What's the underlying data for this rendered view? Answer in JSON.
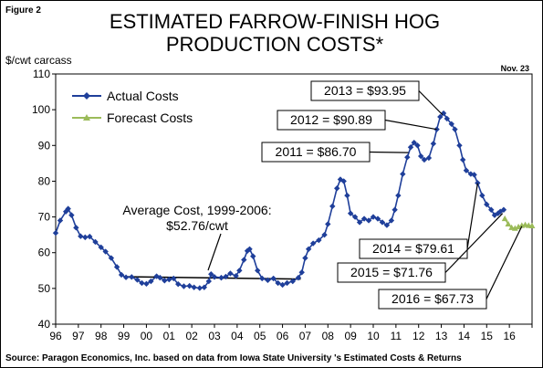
{
  "figure_label": "Figure 2",
  "date_label": "Nov. 23",
  "source": "Source: Paragon Economics, Inc. based on data from Iowa State University 's Estimated Costs & Returns",
  "colors": {
    "actual": "#1f3f9a",
    "forecast": "#9bbb59"
  },
  "chart_data": {
    "type": "line",
    "title_lines": [
      "ESTIMATED FARROW-FINISH HOG",
      "PRODUCTION COSTS*"
    ],
    "ylabel": "$/cwt carcass",
    "xlabel": "",
    "ylim": [
      40,
      110
    ],
    "yticks": [
      40,
      50,
      60,
      70,
      80,
      90,
      100,
      110
    ],
    "xlim": [
      1996,
      2017
    ],
    "xtick_labels": [
      "96",
      "97",
      "98",
      "99",
      "00",
      "01",
      "02",
      "03",
      "04",
      "05",
      "06",
      "07",
      "08",
      "09",
      "10",
      "11",
      "12",
      "13",
      "14",
      "15",
      "16"
    ],
    "grid": false,
    "legend_position": "top-left",
    "series": [
      {
        "name": "Actual Costs",
        "color": "#1f3f9a",
        "points": [
          [
            1996.0,
            65.5
          ],
          [
            1996.2,
            69.0
          ],
          [
            1996.45,
            71.5
          ],
          [
            1996.55,
            72.3
          ],
          [
            1996.7,
            70.5
          ],
          [
            1996.9,
            67.0
          ],
          [
            1997.1,
            64.6
          ],
          [
            1997.3,
            64.3
          ],
          [
            1997.5,
            64.5
          ],
          [
            1997.75,
            63.0
          ],
          [
            1998.0,
            61.5
          ],
          [
            1998.2,
            60.3
          ],
          [
            1998.45,
            58.5
          ],
          [
            1998.7,
            56.0
          ],
          [
            1998.9,
            53.8
          ],
          [
            1999.1,
            53.1
          ],
          [
            1999.35,
            53.2
          ],
          [
            1999.6,
            52.4
          ],
          [
            1999.8,
            51.5
          ],
          [
            2000.0,
            51.3
          ],
          [
            2000.2,
            52.0
          ],
          [
            2000.45,
            53.4
          ],
          [
            2000.6,
            53.0
          ],
          [
            2000.8,
            52.2
          ],
          [
            2001.0,
            52.5
          ],
          [
            2001.2,
            52.8
          ],
          [
            2001.4,
            51.2
          ],
          [
            2001.65,
            50.6
          ],
          [
            2001.9,
            50.7
          ],
          [
            2002.1,
            50.3
          ],
          [
            2002.35,
            50.1
          ],
          [
            2002.55,
            50.3
          ],
          [
            2002.75,
            52.0
          ],
          [
            2002.85,
            54.0
          ],
          [
            2003.0,
            53.2
          ],
          [
            2003.3,
            53.0
          ],
          [
            2003.5,
            53.3
          ],
          [
            2003.7,
            54.2
          ],
          [
            2003.95,
            53.5
          ],
          [
            2004.1,
            55.0
          ],
          [
            2004.3,
            58.0
          ],
          [
            2004.45,
            60.5
          ],
          [
            2004.55,
            61.0
          ],
          [
            2004.7,
            59.0
          ],
          [
            2004.9,
            55.0
          ],
          [
            2005.1,
            52.8
          ],
          [
            2005.35,
            52.3
          ],
          [
            2005.6,
            52.8
          ],
          [
            2005.8,
            51.5
          ],
          [
            2006.0,
            51.0
          ],
          [
            2006.2,
            51.5
          ],
          [
            2006.45,
            52.0
          ],
          [
            2006.7,
            53.0
          ],
          [
            2006.85,
            54.5
          ],
          [
            2007.0,
            58.5
          ],
          [
            2007.15,
            61.0
          ],
          [
            2007.35,
            62.6
          ],
          [
            2007.6,
            63.5
          ],
          [
            2007.85,
            65.0
          ],
          [
            2008.0,
            68.0
          ],
          [
            2008.2,
            73.0
          ],
          [
            2008.4,
            78.0
          ],
          [
            2008.55,
            80.5
          ],
          [
            2008.7,
            80.0
          ],
          [
            2008.85,
            76.0
          ],
          [
            2009.0,
            71.0
          ],
          [
            2009.2,
            70.0
          ],
          [
            2009.4,
            68.5
          ],
          [
            2009.6,
            69.5
          ],
          [
            2009.8,
            69.0
          ],
          [
            2010.0,
            70.0
          ],
          [
            2010.2,
            69.5
          ],
          [
            2010.4,
            68.5
          ],
          [
            2010.6,
            67.7
          ],
          [
            2010.8,
            69.0
          ],
          [
            2010.95,
            72.0
          ],
          [
            2011.1,
            76.0
          ],
          [
            2011.3,
            82.0
          ],
          [
            2011.5,
            86.7
          ],
          [
            2011.65,
            89.5
          ],
          [
            2011.8,
            90.8
          ],
          [
            2011.95,
            90.0
          ],
          [
            2012.1,
            87.0
          ],
          [
            2012.25,
            86.0
          ],
          [
            2012.45,
            86.5
          ],
          [
            2012.65,
            90.5
          ],
          [
            2012.8,
            94.5
          ],
          [
            2012.95,
            98.0
          ],
          [
            2013.1,
            99.0
          ],
          [
            2013.25,
            97.5
          ],
          [
            2013.45,
            96.0
          ],
          [
            2013.6,
            94.5
          ],
          [
            2013.8,
            90.0
          ],
          [
            2013.95,
            86.0
          ],
          [
            2014.1,
            83.0
          ],
          [
            2014.3,
            82.0
          ],
          [
            2014.45,
            81.8
          ],
          [
            2014.6,
            79.5
          ],
          [
            2014.8,
            76.0
          ],
          [
            2015.0,
            73.5
          ],
          [
            2015.2,
            72.0
          ],
          [
            2015.35,
            70.5
          ],
          [
            2015.5,
            71.0
          ],
          [
            2015.6,
            71.5
          ],
          [
            2015.75,
            72.0
          ]
        ]
      },
      {
        "name": "Forecast Costs",
        "color": "#9bbb59",
        "points": [
          [
            2015.8,
            69.5
          ],
          [
            2015.95,
            68.0
          ],
          [
            2016.1,
            67.0
          ],
          [
            2016.25,
            66.8
          ],
          [
            2016.4,
            67.2
          ],
          [
            2016.55,
            67.6
          ],
          [
            2016.7,
            67.8
          ],
          [
            2016.85,
            67.6
          ],
          [
            2017.0,
            67.5
          ]
        ]
      }
    ],
    "average_line": {
      "x": [
        1999.0,
        2006.8
      ],
      "y": [
        53.3,
        52.6
      ]
    },
    "annotations": [
      {
        "text": "2013 = $93.95",
        "boxed": true,
        "anchor": [
          2013.05,
          98.6
        ],
        "box_x": 340,
        "box_y": 88,
        "box_w": 118
      },
      {
        "text": "2012 = $90.89",
        "boxed": true,
        "anchor": [
          2012.8,
          94.5
        ],
        "box_x": 303,
        "box_y": 120,
        "box_w": 118
      },
      {
        "text": "2011 = $86.70",
        "boxed": true,
        "anchor": [
          2011.55,
          88.0
        ],
        "box_x": 286,
        "box_y": 155,
        "box_w": 118
      },
      {
        "text": "2014 = $79.61",
        "boxed": true,
        "anchor": [
          2014.6,
          79.4
        ],
        "box_x": 393,
        "box_y": 261,
        "box_w": 118
      },
      {
        "text": "2015 = $71.76",
        "boxed": true,
        "anchor": [
          2015.7,
          71.0
        ],
        "box_x": 369,
        "box_y": 287,
        "box_w": 118
      },
      {
        "text": "2016 = $67.73",
        "boxed": true,
        "anchor": [
          2016.55,
          67.4
        ],
        "box_x": 414,
        "box_y": 316,
        "box_w": 118
      }
    ],
    "average_label": [
      "Average Cost, 1999-2006:",
      "$52.76/cwt"
    ]
  }
}
